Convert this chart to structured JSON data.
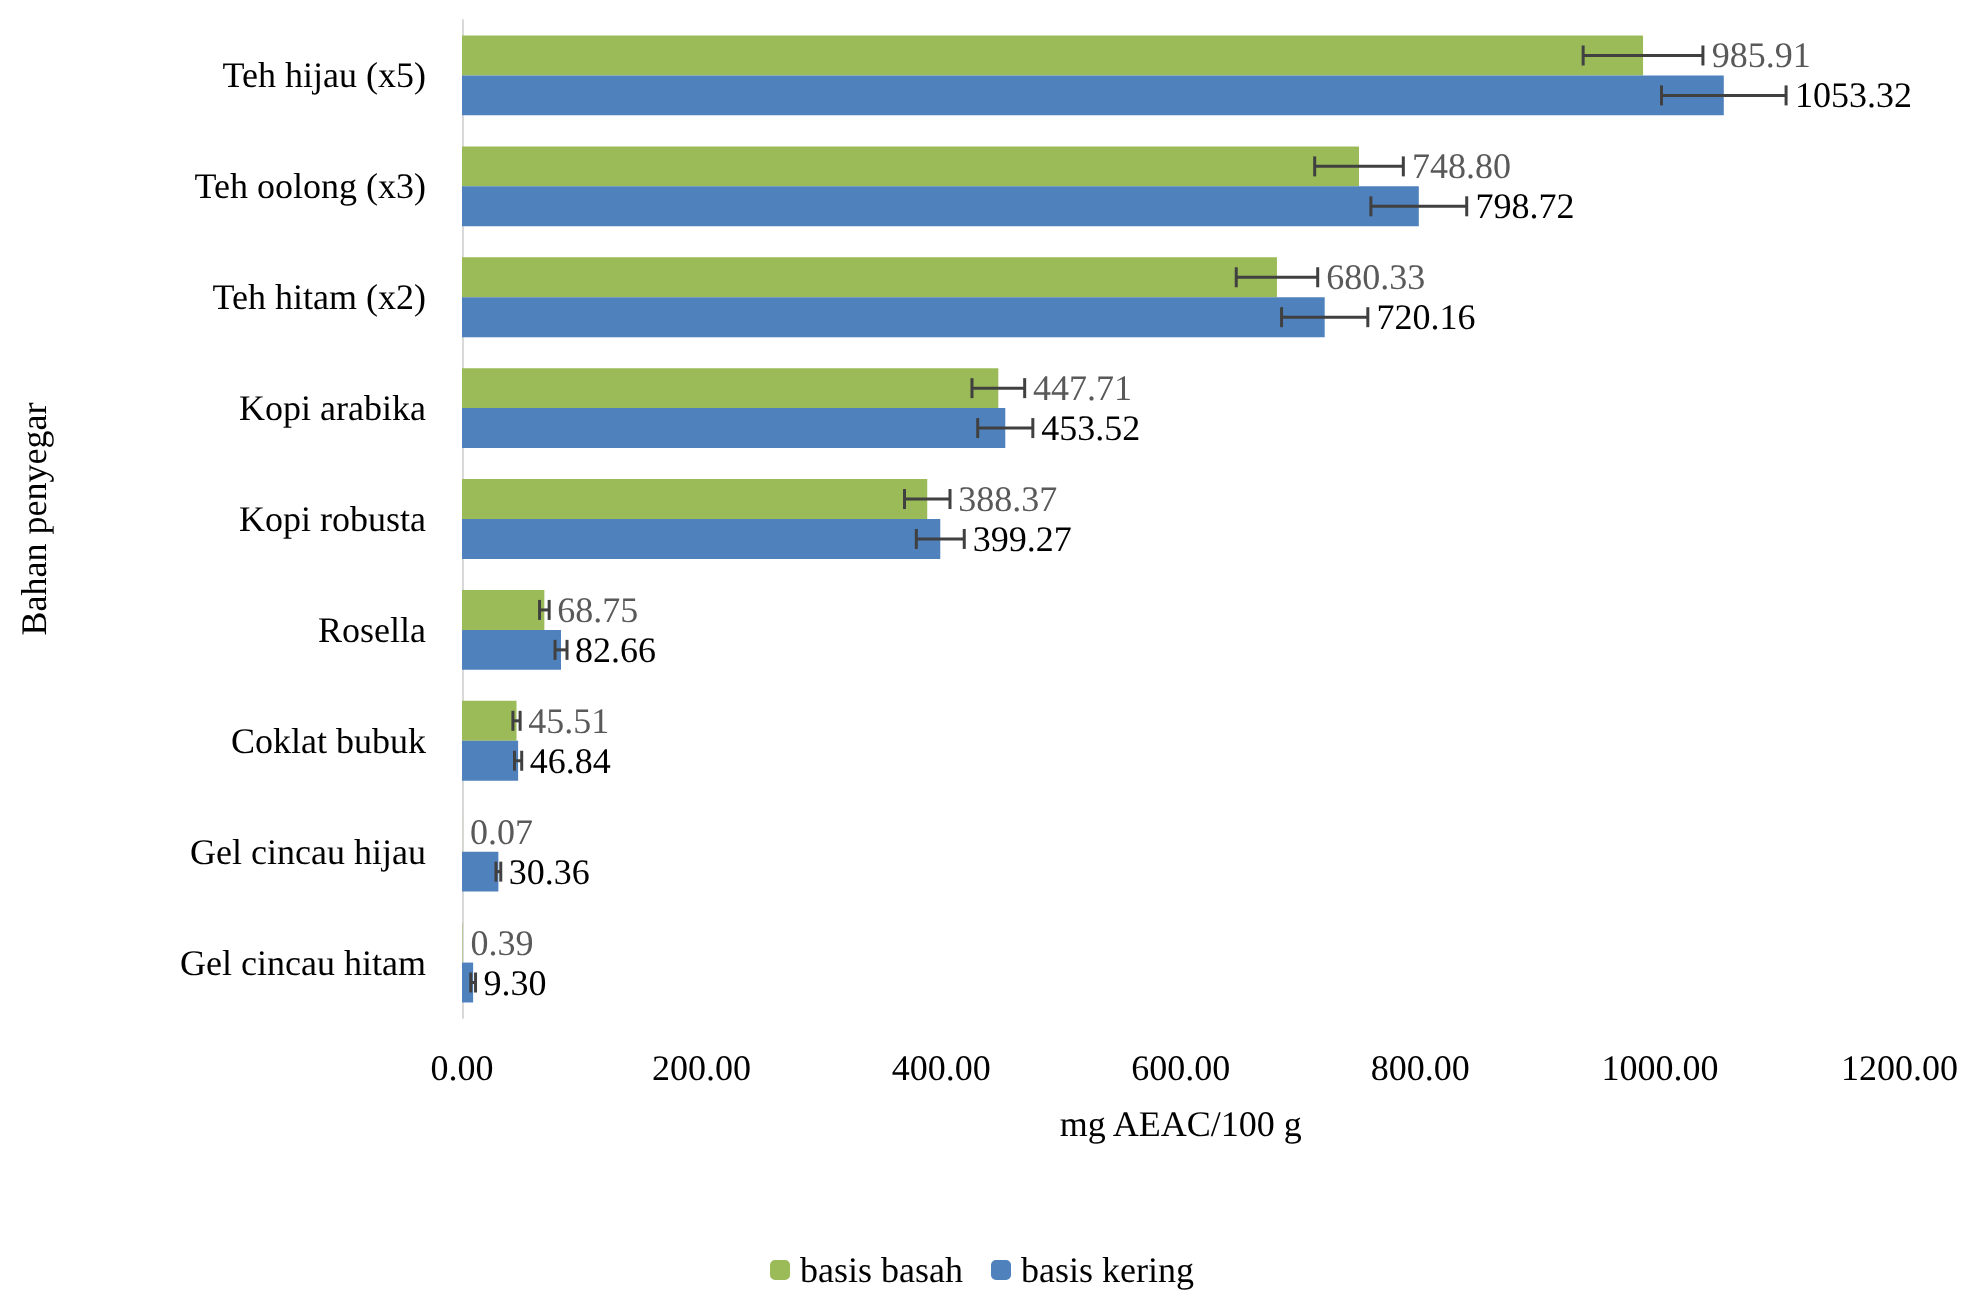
{
  "chart_data": {
    "type": "bar",
    "orientation": "horizontal",
    "xlabel": "mg AEAC/100 g",
    "ylabel": "Bahan penyegar",
    "categories": [
      "Teh hijau (x5)",
      "Teh oolong (x3)",
      "Teh hitam (x2)",
      "Kopi arabika",
      "Kopi robusta",
      "Rosella",
      "Coklat bubuk",
      "Gel cincau hijau",
      "Gel cincau hitam"
    ],
    "series": [
      {
        "name": "basis basah",
        "color": "#9bbb59",
        "values": [
          985.91,
          748.8,
          680.33,
          447.71,
          388.37,
          68.75,
          45.51,
          0.07,
          0.39
        ],
        "value_labels": [
          "985.91",
          "748.80",
          "680.33",
          "447.71",
          "388.37",
          "68.75",
          "45.51",
          "0.07",
          "0.39"
        ],
        "errors": [
          50,
          37,
          34,
          22,
          19,
          4,
          3,
          null,
          null
        ]
      },
      {
        "name": "basis kering",
        "color": "#4f81bd",
        "values": [
          1053.32,
          798.72,
          720.16,
          453.52,
          399.27,
          82.66,
          46.84,
          30.36,
          9.3
        ],
        "value_labels": [
          "1053.32",
          "798.72",
          "720.16",
          "453.52",
          "399.27",
          "82.66",
          "46.84",
          "30.36",
          "9.30"
        ],
        "errors": [
          52,
          40,
          36,
          23,
          20,
          5,
          3,
          2,
          2
        ]
      }
    ],
    "xlim": [
      0,
      1200
    ],
    "xticks": [
      {
        "value": 0,
        "label": "0.00"
      },
      {
        "value": 200,
        "label": "200.00"
      },
      {
        "value": 400,
        "label": "400.00"
      },
      {
        "value": 600,
        "label": "600.00"
      },
      {
        "value": 800,
        "label": "800.00"
      },
      {
        "value": 1000,
        "label": "1000.00"
      },
      {
        "value": 1200,
        "label": "1200.00"
      }
    ],
    "legend": "bottom",
    "grid": false
  }
}
